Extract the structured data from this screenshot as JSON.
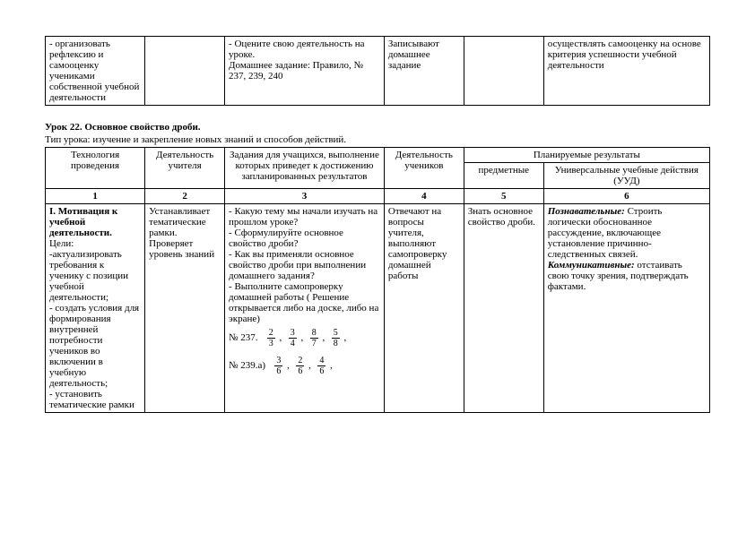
{
  "top_table": {
    "c1": "- организовать рефлексию и самооценку учениками собственной учебной деятельности",
    "c2": "",
    "c3": "- Оцените свою деятельность на уроке.\nДомашнее задание: Правило, № 237, 239, 240",
    "c4": "Записывают домашнее задание",
    "c5": "",
    "c6": "осуществлять самооценку на основе критерия успешности учебной деятельности"
  },
  "lesson": {
    "title": "Урок 22. Основное свойство дроби.",
    "type": "Тип урока: изучение и закрепление новых знаний и способов действий."
  },
  "header": {
    "c1": "Технология проведения",
    "c2": "Деятельность учителя",
    "c3": "Задания для учащихся, выполнение которых приведет к достижению запланированных результатов",
    "c4": "Деятельность учеников",
    "c5_span": "Планируемые результаты",
    "c5": "предметные",
    "c6": "Универсальные учебные действия (УУД)"
  },
  "nums": {
    "n1": "1",
    "n2": "2",
    "n3": "3",
    "n4": "4",
    "n5": "5",
    "n6": "6"
  },
  "row1": {
    "c1_head": "I. Мотивация к учебной деятельности.",
    "c1_body": "Цели:\n-актуализировать требования к ученику с позиции учебной деятельности;\n- создать условия для формирования внутренней потребности учеников во включении в учебную деятельность;\n- установить тематические рамки",
    "c2": "Устанавливает тематические рамки. Проверяет уровень знаний",
    "c3_text": "- Какую тему мы начали изучать на прошлом уроке?\n- Сформулируйте основное свойство дроби?\n- Как вы применяли основное свойство дроби при выполнении домашнего задания?\n- Выполните самопроверку домашней работы ( Решение открывается либо на доске, либо на экране)",
    "c3_ex1_label": "№ 237.",
    "c3_ex1_fracs": [
      {
        "num": "2",
        "den": "3"
      },
      {
        "num": "3",
        "den": "4"
      },
      {
        "num": "8",
        "den": "7"
      },
      {
        "num": "5",
        "den": "8"
      }
    ],
    "c3_ex2_label": "№ 239.а)",
    "c3_ex2_fracs": [
      {
        "num": "3",
        "den": "6"
      },
      {
        "num": "2",
        "den": "6"
      },
      {
        "num": "4",
        "den": "6"
      }
    ],
    "c4": "Отвечают на вопросы учителя, выполняют самопроверку домашней работы",
    "c5": "Знать основное свойство дроби.",
    "c6_p_label": "Познавательные:",
    "c6_p_text": "Строить логически обоснованное рассуждение, включающее установление причинно-следственных связей.",
    "c6_k_label": "Коммуникативные:",
    "c6_k_text": "отстаивать свою точку зрения, подтверждать фактами."
  }
}
